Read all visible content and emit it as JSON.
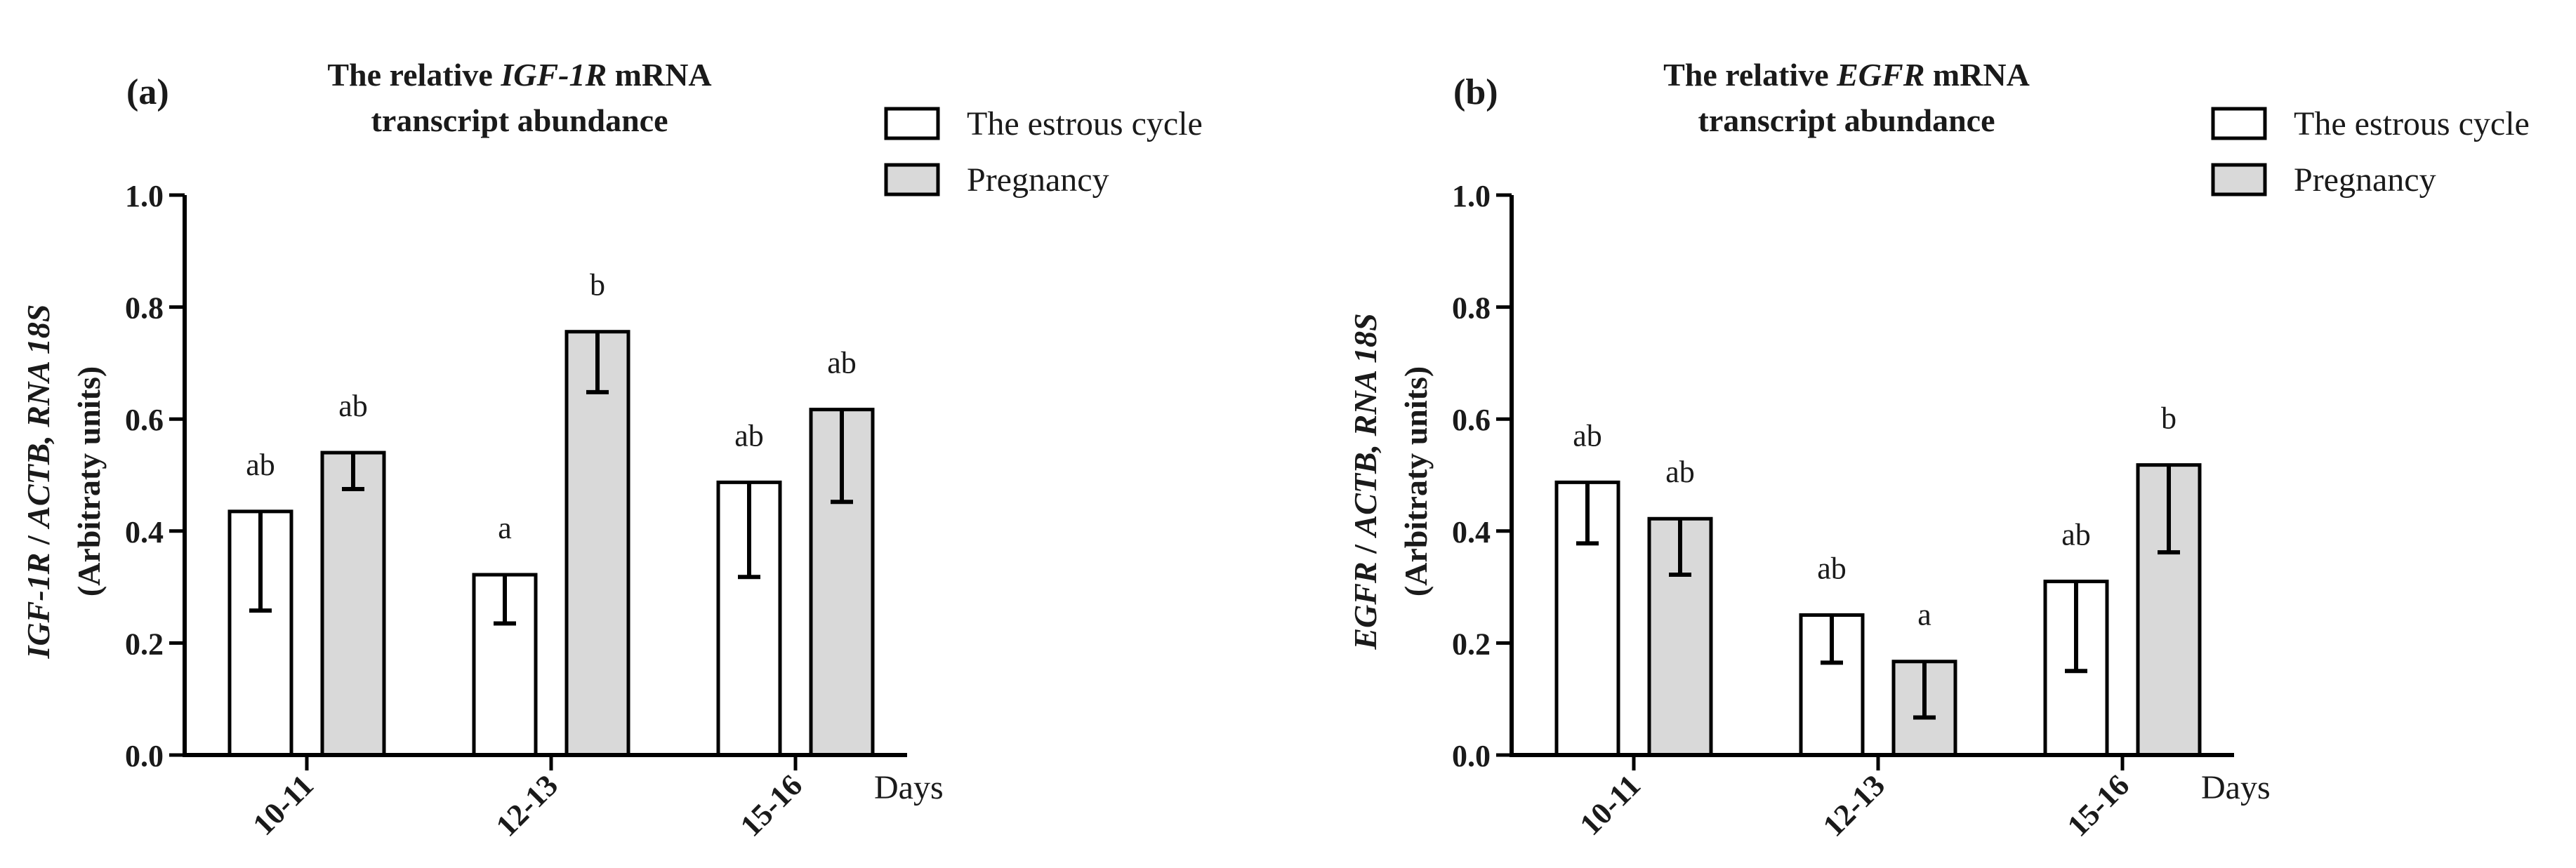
{
  "chart_data": [
    {
      "type": "bar",
      "panel_label": "(a)",
      "title_parts": [
        [
          "The relative ",
          false
        ],
        [
          "IGF-1R",
          true
        ],
        [
          " mRNA",
          false
        ]
      ],
      "title_line2": "transcript abundance",
      "ylabel_parts": [
        [
          "IGF-1R",
          true
        ],
        [
          " / ",
          false
        ],
        [
          "ACTB, RNA 18S",
          true
        ]
      ],
      "ylabel_line2": "(Arbitraty units)",
      "xlabel": "Days",
      "categories": [
        "10-11",
        "12-13",
        "15-16"
      ],
      "ylim": [
        0,
        1.0
      ],
      "yticks": [
        "0.0",
        "0.2",
        "0.4",
        "0.6",
        "0.8",
        "1.0"
      ],
      "series": [
        {
          "name": "The estrous cycle",
          "color": "#ffffff",
          "values": [
            0.435,
            0.322,
            0.487
          ],
          "error_lower": [
            0.258,
            0.235,
            0.318
          ],
          "letters": [
            "ab",
            "a",
            "ab"
          ]
        },
        {
          "name": "Pregnancy",
          "color": "#d9d9d9",
          "values": [
            0.54,
            0.756,
            0.617
          ],
          "error_lower": [
            0.475,
            0.648,
            0.452
          ],
          "letters": [
            "ab",
            "b",
            "ab"
          ]
        }
      ],
      "legend_position": "top-right"
    },
    {
      "type": "bar",
      "panel_label": "(b)",
      "title_parts": [
        [
          "The relative ",
          false
        ],
        [
          "EGFR",
          true
        ],
        [
          " mRNA",
          false
        ]
      ],
      "title_line2": "transcript abundance",
      "ylabel_parts": [
        [
          "EGFR",
          true
        ],
        [
          " / ",
          false
        ],
        [
          "ACTB, RNA 18S",
          true
        ]
      ],
      "ylabel_line2": "(Arbitraty units)",
      "xlabel": "Days",
      "categories": [
        "10-11",
        "12-13",
        "15-16"
      ],
      "ylim": [
        0,
        1.0
      ],
      "yticks": [
        "0.0",
        "0.2",
        "0.4",
        "0.6",
        "0.8",
        "1.0"
      ],
      "series": [
        {
          "name": "The estrous cycle",
          "color": "#ffffff",
          "values": [
            0.487,
            0.25,
            0.31
          ],
          "error_lower": [
            0.378,
            0.165,
            0.15
          ],
          "letters": [
            "ab",
            "ab",
            "ab"
          ]
        },
        {
          "name": "Pregnancy",
          "color": "#d9d9d9",
          "values": [
            0.422,
            0.167,
            0.518
          ],
          "error_lower": [
            0.322,
            0.067,
            0.362
          ],
          "letters": [
            "ab",
            "a",
            "b"
          ]
        }
      ],
      "legend_position": "top-right"
    }
  ]
}
